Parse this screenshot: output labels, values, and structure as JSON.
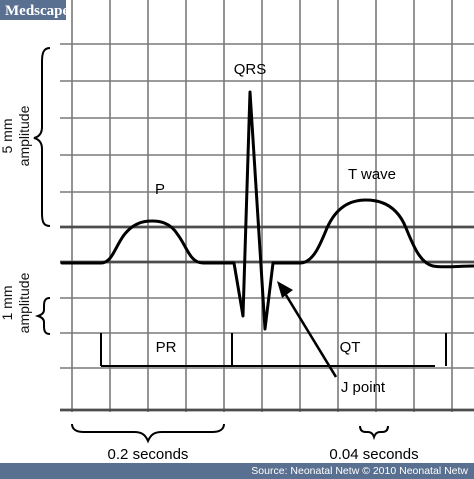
{
  "brand": {
    "name": "Medscape",
    "header_color": "#5a7090",
    "text_color": "#ffffff"
  },
  "labels": {
    "qrs": "QRS",
    "p": "P",
    "t_wave": "T wave",
    "pr": "PR",
    "qt": "QT",
    "j_point": "J point",
    "five_mm_amplitude": "5 mm amplitude",
    "five_mm_line1": "5 mm",
    "five_mm_line2": "amplitude",
    "one_mm_amplitude": "1 mm amplitude",
    "one_mm_line1": "1 mm",
    "one_mm_line2": "amplitude",
    "two_tenths_seconds": "0.2 seconds",
    "four_hundredths_seconds": "0.04 seconds"
  },
  "footer": {
    "source": "Source: Neonatal Netw © 2010 Neonatal Netw",
    "background": "#5a7090"
  },
  "colors": {
    "grid": "#7a7a7a",
    "grid_strong": "#4d4d4d",
    "trace": "#000000"
  }
}
